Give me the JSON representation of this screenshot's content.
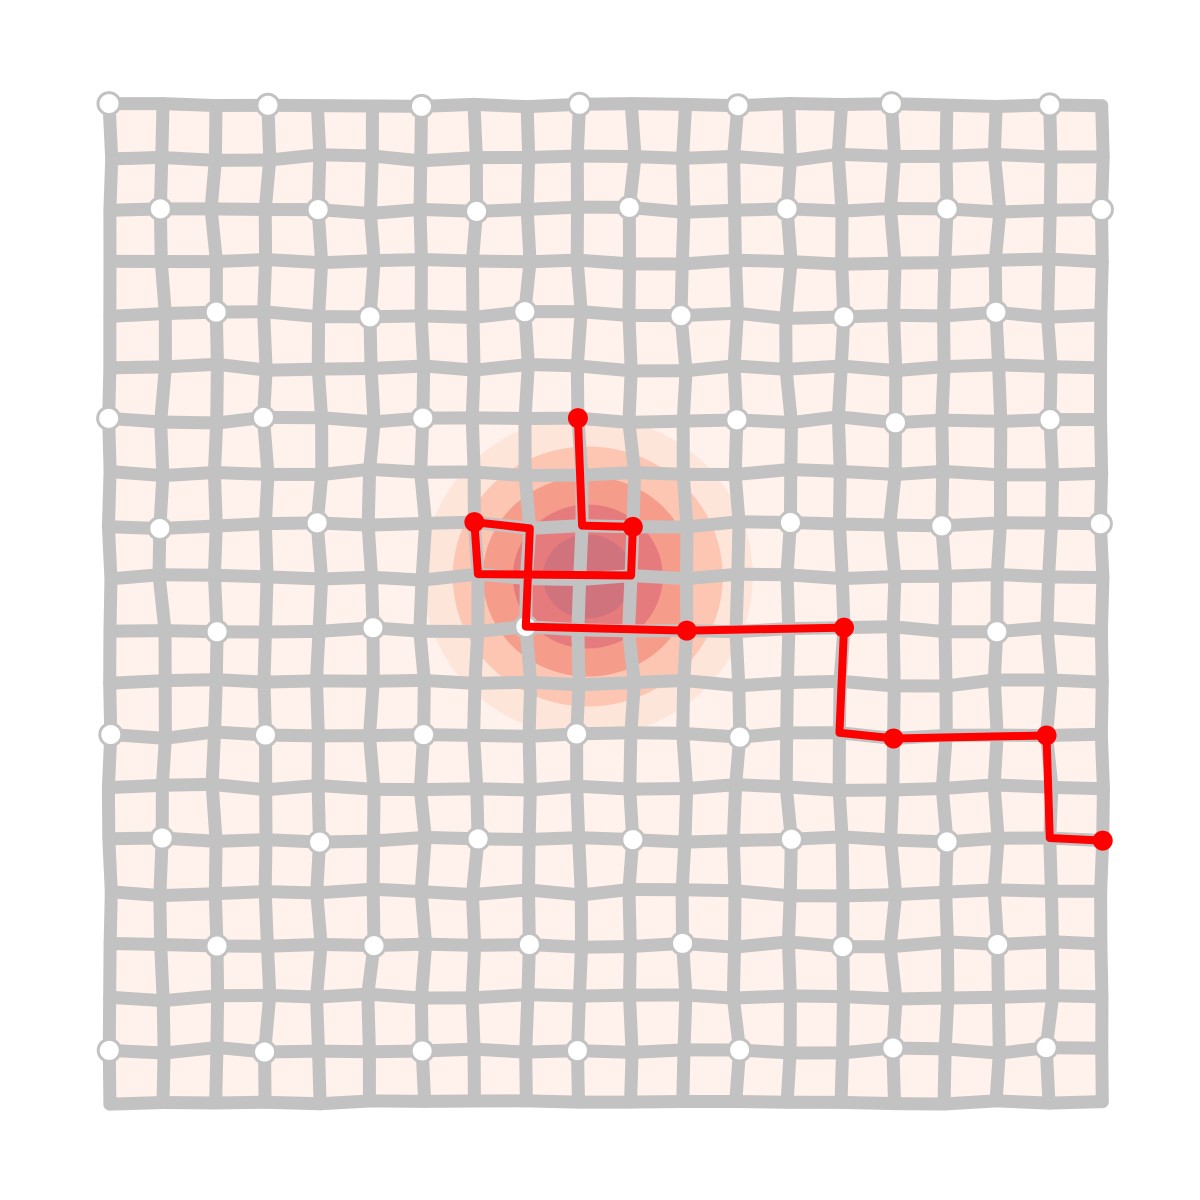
{
  "diagram": {
    "type": "grid-graph-path",
    "grid_cols": 19,
    "grid_rows": 19,
    "colors": {
      "background": "#ffffff",
      "cell_fill": "#fff1ec",
      "edge": "#c2c2c2",
      "node_fill": "#ffffff",
      "node_stroke": "#c2c2c2",
      "path": "#ff0000",
      "heat": [
        "#fde0d4",
        "#fcbba6",
        "#f28e7e",
        "#e0707a",
        "#c9707e"
      ]
    },
    "heat_center": {
      "col": 9,
      "row": 9
    },
    "landmark_nodes": [
      [
        0,
        0
      ],
      [
        3,
        0
      ],
      [
        6,
        0
      ],
      [
        9,
        0
      ],
      [
        12,
        0
      ],
      [
        15,
        0
      ],
      [
        18,
        0
      ],
      [
        1,
        2
      ],
      [
        4,
        2
      ],
      [
        7,
        2
      ],
      [
        10,
        2
      ],
      [
        13,
        2
      ],
      [
        16,
        2
      ],
      [
        19,
        2
      ],
      [
        2,
        4
      ],
      [
        5,
        4
      ],
      [
        8,
        4
      ],
      [
        11,
        4
      ],
      [
        14,
        4
      ],
      [
        17,
        4
      ],
      [
        0,
        6
      ],
      [
        3,
        6
      ],
      [
        6,
        6
      ],
      [
        12,
        6
      ],
      [
        15,
        6
      ],
      [
        18,
        6
      ],
      [
        1,
        8
      ],
      [
        4,
        8
      ],
      [
        13,
        8
      ],
      [
        16,
        8
      ],
      [
        19,
        8
      ],
      [
        2,
        10
      ],
      [
        5,
        10
      ],
      [
        8,
        10
      ],
      [
        17,
        10
      ],
      [
        0,
        12
      ],
      [
        3,
        12
      ],
      [
        6,
        12
      ],
      [
        9,
        12
      ],
      [
        12,
        12
      ],
      [
        1,
        14
      ],
      [
        4,
        14
      ],
      [
        7,
        14
      ],
      [
        10,
        14
      ],
      [
        13,
        14
      ],
      [
        16,
        14
      ],
      [
        2,
        16
      ],
      [
        5,
        16
      ],
      [
        8,
        16
      ],
      [
        11,
        16
      ],
      [
        14,
        16
      ],
      [
        17,
        16
      ],
      [
        0,
        18
      ],
      [
        3,
        18
      ],
      [
        6,
        18
      ],
      [
        9,
        18
      ],
      [
        12,
        18
      ],
      [
        15,
        18
      ],
      [
        18,
        18
      ]
    ],
    "path": [
      [
        9,
        6
      ],
      [
        9,
        8
      ],
      [
        10,
        8
      ],
      [
        10,
        9
      ],
      [
        7,
        9
      ],
      [
        7,
        8
      ],
      [
        8,
        8
      ],
      [
        8,
        10
      ],
      [
        11,
        10
      ],
      [
        14,
        10
      ],
      [
        14,
        12
      ],
      [
        15,
        12
      ],
      [
        18,
        12
      ],
      [
        18,
        14
      ],
      [
        19,
        14
      ]
    ],
    "path_nodes": [
      [
        9,
        6
      ],
      [
        10,
        8
      ],
      [
        7,
        8
      ],
      [
        11,
        10
      ],
      [
        14,
        10
      ],
      [
        15,
        12
      ],
      [
        18,
        12
      ],
      [
        19,
        14
      ]
    ]
  }
}
